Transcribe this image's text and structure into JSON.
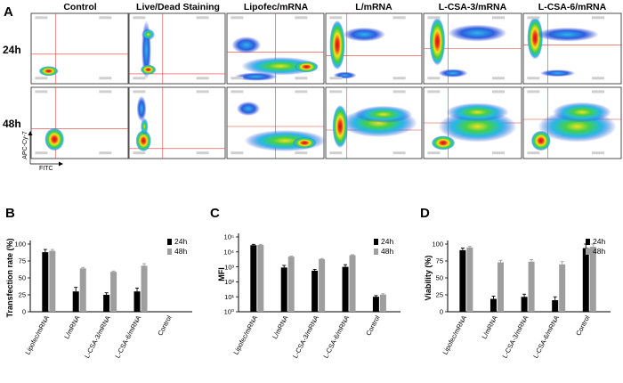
{
  "figure": {
    "panel_a_letter": "A",
    "panel_b_letter": "B",
    "panel_c_letter": "C",
    "panel_d_letter": "D",
    "row_labels": [
      "24h",
      "48h"
    ],
    "column_labels": [
      "Control",
      "Live/Dead Staining",
      "Lipofec/mRNA",
      "L/mRNA",
      "L-CSA-3/mRNA",
      "L-CSA-6/mRNA"
    ],
    "flow_y_axis_label": "APC-Cy-7",
    "flow_x_axis_label": "FITC"
  },
  "colors": {
    "black_series": "#000000",
    "gray_series": "#9e9e9e",
    "gate_line": "#e23b3b",
    "density_high": "#d81e1e",
    "density_mid": "#f0e21a",
    "density_low": "#1f4fe0"
  },
  "chart_data": [
    {
      "id": "B",
      "type": "bar",
      "ylabel": "Transfection rate (%)",
      "xlabel": "",
      "ylim": [
        0,
        100
      ],
      "yticks": [
        "0",
        "25",
        "50",
        "75",
        "100"
      ],
      "ytick_values": [
        0,
        25,
        50,
        75,
        100
      ],
      "categories": [
        "Lipofec/mRNA",
        "L/mRNA",
        "L-CSA-3/mRNA",
        "L-CSA-6/mRNA",
        "Control"
      ],
      "series": [
        {
          "name": "24h",
          "values": [
            88,
            30,
            25,
            30,
            0
          ],
          "errors": [
            4,
            6,
            3,
            5,
            0
          ]
        },
        {
          "name": "48h",
          "values": [
            90,
            64,
            59,
            68,
            0
          ],
          "errors": [
            2,
            1.5,
            1.2,
            3,
            0
          ]
        }
      ],
      "legend": [
        "24h",
        "48h"
      ]
    },
    {
      "id": "C",
      "type": "bar",
      "scale": "log",
      "ylabel": "MFI",
      "xlabel": "",
      "ylim": [
        1,
        100000
      ],
      "yticks": [
        "10⁰",
        "10¹",
        "10²",
        "10³",
        "10⁴",
        "10⁵"
      ],
      "ytick_values": [
        1,
        10,
        100,
        1000,
        10000,
        100000
      ],
      "categories": [
        "Lipofec/mRNA",
        "L/mRNA",
        "L-CSA-3/mRNA",
        "L-CSA-6/mRNA",
        "Control"
      ],
      "series": [
        {
          "name": "24h",
          "values": [
            28000,
            900,
            550,
            1000,
            10
          ],
          "errors": [
            4000,
            350,
            120,
            400,
            2
          ]
        },
        {
          "name": "48h",
          "values": [
            29000,
            4800,
            3300,
            6000,
            14
          ],
          "errors": [
            3000,
            400,
            300,
            500,
            2
          ]
        }
      ],
      "legend": [
        "24h",
        "48h"
      ]
    },
    {
      "id": "D",
      "type": "bar",
      "ylabel": "Viability (%)",
      "xlabel": "",
      "ylim": [
        0,
        100
      ],
      "yticks": [
        "0",
        "25",
        "50",
        "75",
        "100"
      ],
      "ytick_values": [
        0,
        25,
        50,
        75,
        100
      ],
      "categories": [
        "Lipofec/mRNA",
        "L/mRNA",
        "L-CSA-3/mRNA",
        "L-CSA-6/mRNA",
        "Control"
      ],
      "series": [
        {
          "name": "24h",
          "values": [
            91,
            19,
            22,
            17,
            94
          ],
          "errors": [
            3,
            4,
            4,
            5,
            6
          ]
        },
        {
          "name": "48h",
          "values": [
            95,
            73,
            74,
            70,
            96
          ],
          "errors": [
            1.5,
            3,
            3,
            4,
            4
          ]
        }
      ],
      "legend": [
        "24h",
        "48h"
      ]
    }
  ]
}
